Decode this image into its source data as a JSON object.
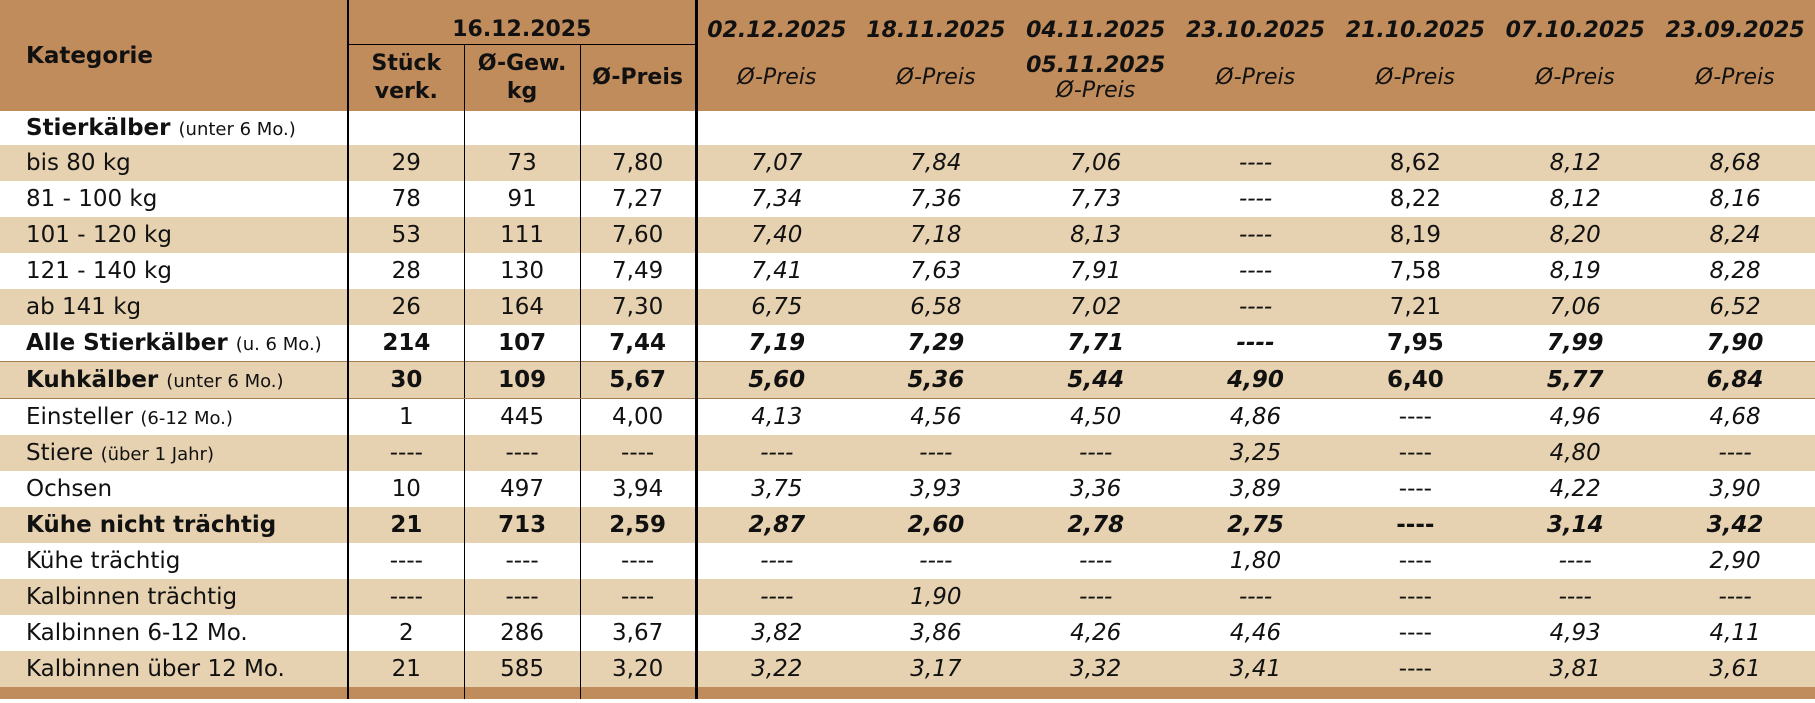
{
  "header": {
    "category_label": "Kategorie",
    "current_date": "16.12.2025",
    "col_stueck_line1": "Stück",
    "col_stueck_line2": "verk.",
    "col_gew_line1": "Ø-Gew.",
    "col_gew_line2": "kg",
    "col_preis": "Ø-Preis",
    "hist_dates": [
      "02.12.2025",
      "18.11.2025",
      "04.11.2025",
      "23.10.2025",
      "21.10.2025",
      "07.10.2025",
      "23.09.2025"
    ],
    "hist_alt_date": "05.11.2025",
    "hist_label": "Ø-Preis"
  },
  "rows": [
    {
      "name": "Stierkälber",
      "note": "(unter 6 Mo.)",
      "vals": [
        "",
        "",
        "",
        "",
        "",
        "",
        "",
        "",
        "",
        ""
      ]
    },
    {
      "name": "bis 80 kg",
      "note": "",
      "vals": [
        "29",
        "73",
        "7,80",
        "7,07",
        "7,84",
        "7,06",
        "----",
        "8,62",
        "8,12",
        "8,68"
      ]
    },
    {
      "name": "81 - 100 kg",
      "note": "",
      "vals": [
        "78",
        "91",
        "7,27",
        "7,34",
        "7,36",
        "7,73",
        "----",
        "8,22",
        "8,12",
        "8,16"
      ]
    },
    {
      "name": "101 - 120 kg",
      "note": "",
      "vals": [
        "53",
        "111",
        "7,60",
        "7,40",
        "7,18",
        "8,13",
        "----",
        "8,19",
        "8,20",
        "8,24"
      ]
    },
    {
      "name": "121 - 140 kg",
      "note": "",
      "vals": [
        "28",
        "130",
        "7,49",
        "7,41",
        "7,63",
        "7,91",
        "----",
        "7,58",
        "8,19",
        "8,28"
      ]
    },
    {
      "name": "ab 141 kg",
      "note": "",
      "vals": [
        "26",
        "164",
        "7,30",
        "6,75",
        "6,58",
        "7,02",
        "----",
        "7,21",
        "7,06",
        "6,52"
      ]
    },
    {
      "name": "Alle Stierkälber",
      "note": "(u. 6 Mo.)",
      "vals": [
        "214",
        "107",
        "7,44",
        "7,19",
        "7,29",
        "7,71",
        "----",
        "7,95",
        "7,99",
        "7,90"
      ]
    },
    {
      "name": "Kuhkälber",
      "note": "(unter 6 Mo.)",
      "vals": [
        "30",
        "109",
        "5,67",
        "5,60",
        "5,36",
        "5,44",
        "4,90",
        "6,40",
        "5,77",
        "6,84"
      ]
    },
    {
      "name": "Einsteller",
      "note": "(6-12 Mo.)",
      "vals": [
        "1",
        "445",
        "4,00",
        "4,13",
        "4,56",
        "4,50",
        "4,86",
        "----",
        "4,96",
        "4,68"
      ]
    },
    {
      "name": "Stiere",
      "note": "(über 1 Jahr)",
      "vals": [
        "----",
        "----",
        "----",
        "----",
        "----",
        "----",
        "3,25",
        "----",
        "4,80",
        "----"
      ]
    },
    {
      "name": "Ochsen",
      "note": "",
      "vals": [
        "10",
        "497",
        "3,94",
        "3,75",
        "3,93",
        "3,36",
        "3,89",
        "----",
        "4,22",
        "3,90"
      ]
    },
    {
      "name": "Kühe nicht trächtig",
      "note": "",
      "vals": [
        "21",
        "713",
        "2,59",
        "2,87",
        "2,60",
        "2,78",
        "2,75",
        "----",
        "3,14",
        "3,42"
      ]
    },
    {
      "name": "Kühe trächtig",
      "note": "",
      "vals": [
        "----",
        "----",
        "----",
        "----",
        "----",
        "----",
        "1,80",
        "----",
        "----",
        "2,90"
      ]
    },
    {
      "name": "Kalbinnen trächtig",
      "note": "",
      "vals": [
        "----",
        "----",
        "----",
        "----",
        "1,90",
        "----",
        "----",
        "----",
        "----",
        "----"
      ]
    },
    {
      "name": "Kalbinnen 6-12 Mo.",
      "note": "",
      "vals": [
        "2",
        "286",
        "3,67",
        "3,82",
        "3,86",
        "4,26",
        "4,46",
        "----",
        "4,93",
        "4,11"
      ]
    },
    {
      "name": "Kalbinnen über 12 Mo.",
      "note": "",
      "vals": [
        "21",
        "585",
        "3,20",
        "3,22",
        "3,17",
        "3,32",
        "3,41",
        "----",
        "3,81",
        "3,61"
      ]
    }
  ]
}
